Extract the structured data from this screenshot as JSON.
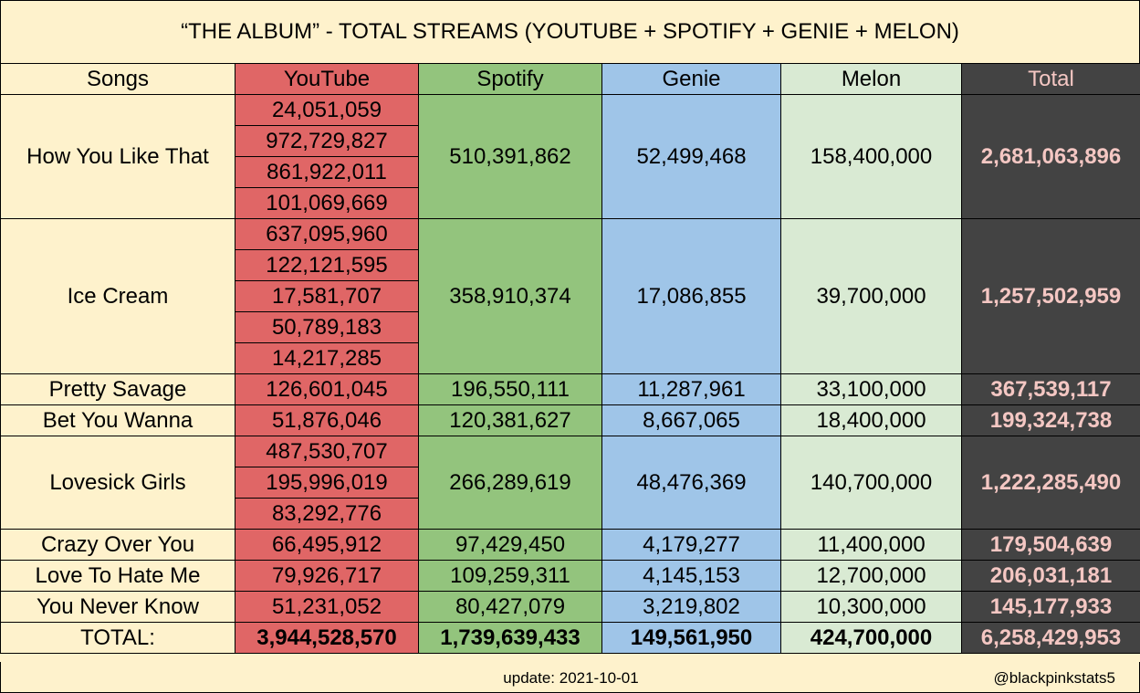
{
  "chart_data": {
    "type": "table",
    "title": "“THE ALBUM” - TOTAL STREAMS (YOUTUBE + SPOTIFY + GENIE + MELON)",
    "headers": [
      "Songs",
      "YouTube",
      "Spotify",
      "Genie",
      "Melon",
      "Total"
    ],
    "rows": [
      {
        "song": "How You Like That",
        "youtube": [
          "24,051,059",
          "972,729,827",
          "861,922,011",
          "101,069,669"
        ],
        "spotify": "510,391,862",
        "genie": "52,499,468",
        "melon": "158,400,000",
        "total": "2,681,063,896"
      },
      {
        "song": "Ice Cream",
        "youtube": [
          "637,095,960",
          "122,121,595",
          "17,581,707",
          "50,789,183",
          "14,217,285"
        ],
        "spotify": "358,910,374",
        "genie": "17,086,855",
        "melon": "39,700,000",
        "total": "1,257,502,959"
      },
      {
        "song": "Pretty Savage",
        "youtube": [
          "126,601,045"
        ],
        "spotify": "196,550,111",
        "genie": "11,287,961",
        "melon": "33,100,000",
        "total": "367,539,117"
      },
      {
        "song": "Bet You Wanna",
        "youtube": [
          "51,876,046"
        ],
        "spotify": "120,381,627",
        "genie": "8,667,065",
        "melon": "18,400,000",
        "total": "199,324,738"
      },
      {
        "song": "Lovesick Girls",
        "youtube": [
          "487,530,707",
          "195,996,019",
          "83,292,776"
        ],
        "spotify": "266,289,619",
        "genie": "48,476,369",
        "melon": "140,700,000",
        "total": "1,222,285,490"
      },
      {
        "song": "Crazy Over You",
        "youtube": [
          "66,495,912"
        ],
        "spotify": "97,429,450",
        "genie": "4,179,277",
        "melon": "11,400,000",
        "total": "179,504,639"
      },
      {
        "song": "Love To Hate Me",
        "youtube": [
          "79,926,717"
        ],
        "spotify": "109,259,311",
        "genie": "4,145,153",
        "melon": "12,700,000",
        "total": "206,031,181"
      },
      {
        "song": "You Never Know",
        "youtube": [
          "51,231,052"
        ],
        "spotify": "80,427,079",
        "genie": "3,219,802",
        "melon": "10,300,000",
        "total": "145,177,933"
      }
    ],
    "totals": {
      "label": "TOTAL:",
      "youtube": "3,944,528,570",
      "spotify": "1,739,639,433",
      "genie": "149,561,950",
      "melon": "424,700,000",
      "total": "6,258,429,953"
    }
  },
  "colors": {
    "background": "#fef2cc",
    "youtube": "#e06666",
    "spotify": "#93c47d",
    "genie": "#9fc5e8",
    "melon": "#d9ead3",
    "total_bg": "#434343",
    "total_text": "#f4c7c3"
  },
  "footer": {
    "update": "update: 2021-10-01",
    "handle": "@blackpinkstats5"
  }
}
